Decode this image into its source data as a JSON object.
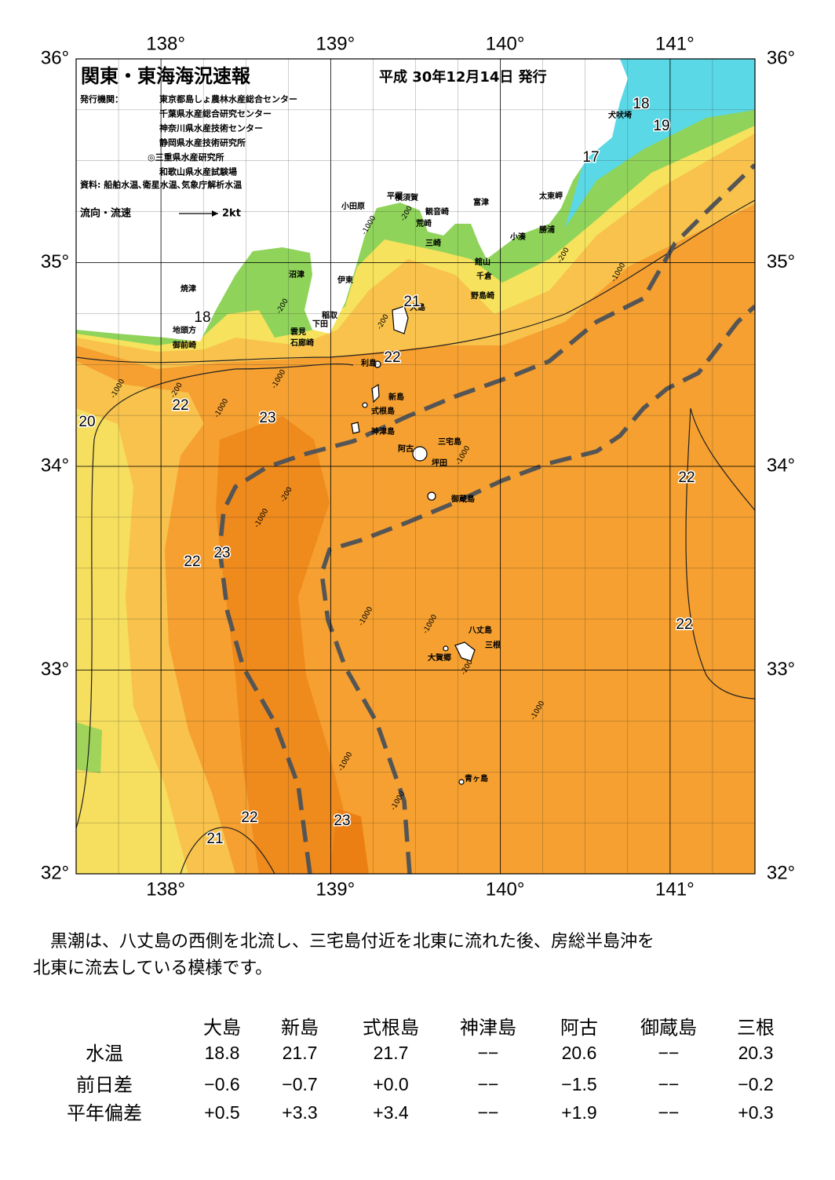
{
  "map": {
    "title": "関東・東海海況速報",
    "date": "平成 30年12月14日 発行",
    "publisher_label": "発行機関：",
    "publishers": [
      "東京都島しょ農林水産総合センター",
      "千葉県水産総合研究センター",
      "神奈川県水産技術センター",
      "静岡県水産技術研究所",
      "◎三重県水産研究所",
      "和歌山県水産試験場"
    ],
    "source": "資料: 船舶水温､衛星水温､気象庁解析水温",
    "legend_label": "流向・流速",
    "legend_speed": "2kt",
    "xlim": [
      137.5,
      141.5
    ],
    "ylim": [
      32,
      36
    ],
    "xticks": [
      {
        "value": 138,
        "label": "138°"
      },
      {
        "value": 139,
        "label": "139°"
      },
      {
        "value": 140,
        "label": "140°"
      },
      {
        "value": 141,
        "label": "141°"
      }
    ],
    "yticks": [
      {
        "value": 36,
        "label": "36°"
      },
      {
        "value": 35,
        "label": "35°"
      },
      {
        "value": 34,
        "label": "34°"
      },
      {
        "value": 33,
        "label": "33°"
      },
      {
        "value": 32,
        "label": "32°"
      }
    ],
    "places": [
      "犬吠埼",
      "太東岬",
      "勝浦",
      "小湊",
      "富津",
      "横須賀",
      "平塚",
      "観音崎",
      "荒崎",
      "三崎",
      "小田原",
      "館山",
      "千倉",
      "野島崎",
      "沼津",
      "伊東",
      "焼津",
      "稲取",
      "下田",
      "雲見",
      "石廊崎",
      "地頭方",
      "御前崎",
      "利島",
      "新島",
      "式根島",
      "神津島",
      "三宅島",
      "阿古",
      "坪田",
      "御蔵島",
      "八丈島",
      "三根",
      "大賀郷",
      "青ヶ島",
      "大島"
    ],
    "temperatures": [
      "18",
      "19",
      "17",
      "18",
      "21",
      "22",
      "22",
      "23",
      "20",
      "22",
      "22",
      "23",
      "22",
      "22",
      "23",
      "21"
    ],
    "depths": [
      "-200",
      "-1000",
      "-200",
      "-1000",
      "-200",
      "-1000",
      "-1000",
      "-200",
      "-1000",
      "-1000",
      "-1000",
      "-1000",
      "-200",
      "-1000",
      "-1000",
      "-1000",
      "-200",
      "-1000",
      "-200"
    ]
  },
  "description": [
    "　黒潮は、八丈島の西側を北流し、三宅島付近を北東に流れた後、房総半島沖を",
    "北東に流去している模様です。"
  ],
  "table": {
    "columns": [
      "大島",
      "新島",
      "式根島",
      "神津島",
      "阿古",
      "御蔵島",
      "三根"
    ],
    "rows": [
      {
        "label": "水温",
        "values": [
          "18.8",
          "21.7",
          "21.7",
          "−−",
          "20.6",
          "−−",
          "20.3"
        ]
      },
      {
        "label": "前日差",
        "values": [
          "−0.6",
          "−0.7",
          "+0.0",
          "−−",
          "−1.5",
          "−−",
          "−0.2"
        ]
      },
      {
        "label": "平年偏差",
        "values": [
          "+0.5",
          "+3.3",
          "+3.4",
          "−−",
          "+1.9",
          "−−",
          "+0.3"
        ]
      }
    ]
  }
}
